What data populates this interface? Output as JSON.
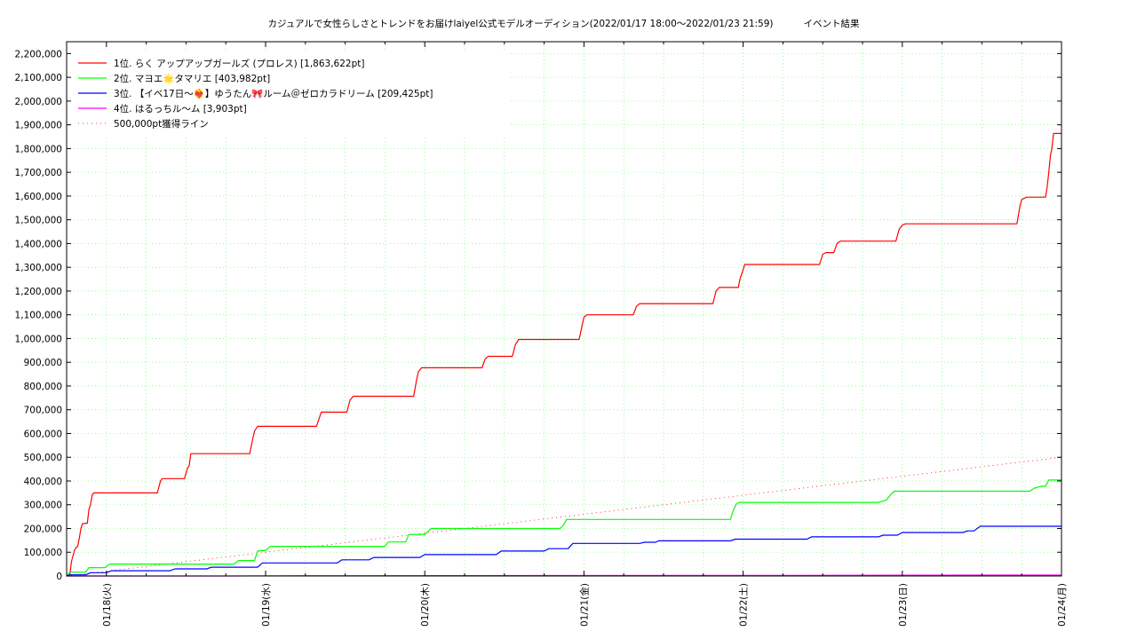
{
  "chart_data": {
    "type": "line",
    "title": "カジュアルで女性らしさとトレンドをお届けlaiyel公式モデルオーディション(2022/01/17 18:00〜2022/01/23 21:59)",
    "subtitle": "イベント結果",
    "xlabel": "",
    "ylabel": "",
    "x_unit": "days since 2022/01/17 18:00",
    "xlim": [
      0,
      6.25
    ],
    "ylim": [
      0,
      2250000
    ],
    "y_ticks": [
      0,
      100000,
      200000,
      300000,
      400000,
      500000,
      600000,
      700000,
      800000,
      900000,
      1000000,
      1100000,
      1200000,
      1300000,
      1400000,
      1500000,
      1600000,
      1700000,
      1800000,
      1900000,
      2000000,
      2100000,
      2200000
    ],
    "y_tick_labels": [
      "0",
      "100,000",
      "200,000",
      "300,000",
      "400,000",
      "500,000",
      "600,000",
      "700,000",
      "800,000",
      "900,000",
      "1,000,000",
      "1,100,000",
      "1,200,000",
      "1,300,000",
      "1,400,000",
      "1,500,000",
      "1,600,000",
      "1,700,000",
      "1,800,000",
      "1,900,000",
      "2,000,000",
      "2,100,000",
      "2,200,000"
    ],
    "x_ticks": [
      {
        "x": 0.25,
        "label": "01/18(火)"
      },
      {
        "x": 1.25,
        "label": "01/19(水)"
      },
      {
        "x": 2.25,
        "label": "01/20(木)"
      },
      {
        "x": 3.25,
        "label": "01/21(金)"
      },
      {
        "x": 4.25,
        "label": "01/22(土)"
      },
      {
        "x": 5.25,
        "label": "01/23(日)"
      },
      {
        "x": 6.25,
        "label": "01/24(月)"
      }
    ],
    "grid": true,
    "legend_position": "top-left",
    "series": [
      {
        "name": "1位. らく アップアップガールズ (プロレス) [1,863,622pt]",
        "color": "#ff0000",
        "points": [
          [
            0,
            0
          ],
          [
            0.02,
            5000
          ],
          [
            0.03,
            60000
          ],
          [
            0.05,
            110000
          ],
          [
            0.06,
            120000
          ],
          [
            0.07,
            125000
          ],
          [
            0.08,
            160000
          ],
          [
            0.09,
            200000
          ],
          [
            0.1,
            220000
          ],
          [
            0.12,
            222000
          ],
          [
            0.13,
            222000
          ],
          [
            0.14,
            280000
          ],
          [
            0.15,
            300000
          ],
          [
            0.16,
            340000
          ],
          [
            0.17,
            350000
          ],
          [
            0.57,
            350000
          ],
          [
            0.59,
            400000
          ],
          [
            0.6,
            410000
          ],
          [
            0.74,
            410000
          ],
          [
            0.76,
            455000
          ],
          [
            0.77,
            465000
          ],
          [
            0.78,
            515000
          ],
          [
            1.15,
            515000
          ],
          [
            1.17,
            580000
          ],
          [
            1.18,
            610000
          ],
          [
            1.2,
            630000
          ],
          [
            1.57,
            630000
          ],
          [
            1.59,
            670000
          ],
          [
            1.6,
            690000
          ],
          [
            1.76,
            690000
          ],
          [
            1.78,
            740000
          ],
          [
            1.8,
            757000
          ],
          [
            2.18,
            757000
          ],
          [
            2.2,
            830000
          ],
          [
            2.21,
            860000
          ],
          [
            2.23,
            877000
          ],
          [
            2.61,
            877000
          ],
          [
            2.63,
            915000
          ],
          [
            2.65,
            925000
          ],
          [
            2.8,
            925000
          ],
          [
            2.82,
            975000
          ],
          [
            2.84,
            996000
          ],
          [
            3.22,
            996000
          ],
          [
            3.24,
            1060000
          ],
          [
            3.25,
            1090000
          ],
          [
            3.27,
            1100000
          ],
          [
            3.56,
            1100000
          ],
          [
            3.58,
            1135000
          ],
          [
            3.6,
            1147000
          ],
          [
            4.06,
            1147000
          ],
          [
            4.08,
            1200000
          ],
          [
            4.1,
            1215000
          ],
          [
            4.22,
            1215000
          ],
          [
            4.23,
            1250000
          ],
          [
            4.25,
            1290000
          ],
          [
            4.26,
            1312000
          ],
          [
            4.73,
            1312000
          ],
          [
            4.75,
            1355000
          ],
          [
            4.77,
            1362000
          ],
          [
            4.82,
            1362000
          ],
          [
            4.84,
            1400000
          ],
          [
            4.86,
            1410000
          ],
          [
            5.21,
            1410000
          ],
          [
            5.23,
            1460000
          ],
          [
            5.25,
            1478000
          ],
          [
            5.27,
            1483000
          ],
          [
            5.97,
            1483000
          ],
          [
            5.99,
            1560000
          ],
          [
            6.0,
            1585000
          ],
          [
            6.03,
            1595000
          ],
          [
            6.15,
            1595000
          ],
          [
            6.16,
            1640000
          ],
          [
            6.17,
            1700000
          ],
          [
            6.18,
            1770000
          ],
          [
            6.19,
            1800000
          ],
          [
            6.2,
            1863622
          ],
          [
            6.25,
            1863622
          ]
        ]
      },
      {
        "name": "2位. マヨエ🌟タマリエ [403,982pt]",
        "color": "#00ff00",
        "points": [
          [
            0,
            0
          ],
          [
            0.02,
            16000
          ],
          [
            0.12,
            16000
          ],
          [
            0.14,
            35000
          ],
          [
            0.24,
            35000
          ],
          [
            0.27,
            50000
          ],
          [
            1.05,
            50000
          ],
          [
            1.08,
            65000
          ],
          [
            1.18,
            65000
          ],
          [
            1.2,
            105000
          ],
          [
            1.25,
            108000
          ],
          [
            1.28,
            125000
          ],
          [
            2.0,
            125000
          ],
          [
            2.02,
            143000
          ],
          [
            2.13,
            143000
          ],
          [
            2.15,
            175000
          ],
          [
            2.25,
            175000
          ],
          [
            2.29,
            200000
          ],
          [
            3.1,
            200000
          ],
          [
            3.12,
            213000
          ],
          [
            3.14,
            238000
          ],
          [
            4.17,
            238000
          ],
          [
            4.19,
            280000
          ],
          [
            4.21,
            305000
          ],
          [
            4.23,
            310000
          ],
          [
            5.1,
            310000
          ],
          [
            5.15,
            320000
          ],
          [
            5.18,
            345000
          ],
          [
            5.2,
            357000
          ],
          [
            6.05,
            357000
          ],
          [
            6.08,
            370000
          ],
          [
            6.12,
            378000
          ],
          [
            6.15,
            378000
          ],
          [
            6.17,
            403982
          ],
          [
            6.25,
            403982
          ]
        ]
      },
      {
        "name": "3位. 【イベ17日〜❤️‍🔥】ゆうたん🎀ルーム＠ゼロカラドリーム [209,425pt]",
        "color": "#0000ff",
        "points": [
          [
            0,
            0
          ],
          [
            0.02,
            5000
          ],
          [
            0.12,
            5000
          ],
          [
            0.15,
            14000
          ],
          [
            0.25,
            14000
          ],
          [
            0.28,
            22000
          ],
          [
            0.65,
            22000
          ],
          [
            0.68,
            30000
          ],
          [
            0.88,
            30000
          ],
          [
            0.91,
            37000
          ],
          [
            1.2,
            37000
          ],
          [
            1.23,
            55000
          ],
          [
            1.7,
            55000
          ],
          [
            1.73,
            68000
          ],
          [
            1.9,
            68000
          ],
          [
            1.93,
            78000
          ],
          [
            2.22,
            78000
          ],
          [
            2.25,
            90000
          ],
          [
            2.7,
            90000
          ],
          [
            2.73,
            105000
          ],
          [
            3.0,
            105000
          ],
          [
            3.03,
            115000
          ],
          [
            3.15,
            115000
          ],
          [
            3.18,
            137000
          ],
          [
            3.6,
            137000
          ],
          [
            3.63,
            142000
          ],
          [
            3.7,
            142000
          ],
          [
            3.72,
            148000
          ],
          [
            4.17,
            148000
          ],
          [
            4.2,
            155000
          ],
          [
            4.65,
            155000
          ],
          [
            4.68,
            165000
          ],
          [
            5.1,
            165000
          ],
          [
            5.13,
            172000
          ],
          [
            5.22,
            172000
          ],
          [
            5.25,
            183000
          ],
          [
            5.63,
            183000
          ],
          [
            5.66,
            190000
          ],
          [
            5.7,
            190000
          ],
          [
            5.74,
            209425
          ],
          [
            6.25,
            209425
          ]
        ]
      },
      {
        "name": "4位. はるっちル〜ム [3,903pt]",
        "color": "#ff00ff",
        "points": [
          [
            0,
            0
          ],
          [
            1.0,
            0
          ],
          [
            1.5,
            1000
          ],
          [
            3.0,
            2000
          ],
          [
            4.5,
            2800
          ],
          [
            6.0,
            3903
          ],
          [
            6.25,
            3903
          ]
        ]
      }
    ],
    "reference_line": {
      "name": "500,000pt獲得ライン",
      "color": "#ff0000",
      "points": [
        [
          0,
          0
        ],
        [
          6.25,
          500000
        ]
      ]
    }
  }
}
